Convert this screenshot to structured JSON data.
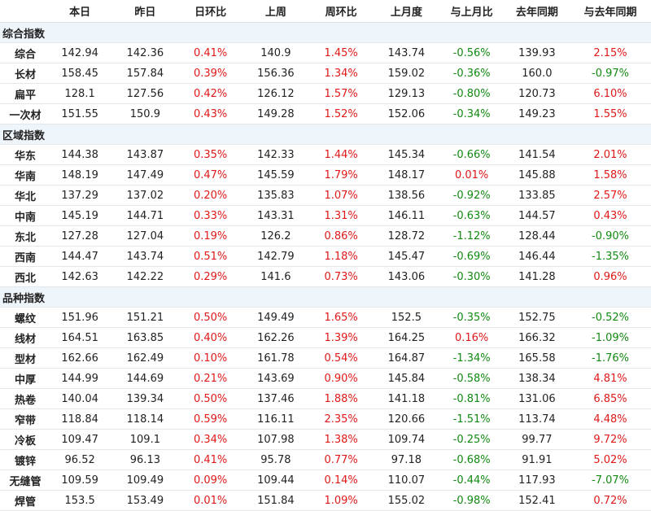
{
  "colors": {
    "positive": "#e01818",
    "negative": "#128a12",
    "section_bg": "#eef5fb"
  },
  "headers": [
    "",
    "本日",
    "昨日",
    "日环比",
    "上周",
    "周环比",
    "上月度",
    "与上月比",
    "去年同期",
    "与去年同期"
  ],
  "sections": [
    {
      "title": "综合指数",
      "rows": [
        {
          "name": "综合",
          "values": [
            "142.94",
            "142.36",
            "0.41%",
            "140.9",
            "1.45%",
            "143.74",
            "-0.56%",
            "139.93",
            "2.15%"
          ]
        },
        {
          "name": "长材",
          "values": [
            "158.45",
            "157.84",
            "0.39%",
            "156.36",
            "1.34%",
            "159.02",
            "-0.36%",
            "160.0",
            "-0.97%"
          ]
        },
        {
          "name": "扁平",
          "values": [
            "128.1",
            "127.56",
            "0.42%",
            "126.12",
            "1.57%",
            "129.13",
            "-0.80%",
            "120.73",
            "6.10%"
          ]
        },
        {
          "name": "一次材",
          "values": [
            "151.55",
            "150.9",
            "0.43%",
            "149.28",
            "1.52%",
            "152.06",
            "-0.34%",
            "149.23",
            "1.55%"
          ]
        }
      ]
    },
    {
      "title": "区域指数",
      "rows": [
        {
          "name": "华东",
          "values": [
            "144.38",
            "143.87",
            "0.35%",
            "142.33",
            "1.44%",
            "145.34",
            "-0.66%",
            "141.54",
            "2.01%"
          ]
        },
        {
          "name": "华南",
          "values": [
            "148.19",
            "147.49",
            "0.47%",
            "145.59",
            "1.79%",
            "148.17",
            "0.01%",
            "145.88",
            "1.58%"
          ]
        },
        {
          "name": "华北",
          "values": [
            "137.29",
            "137.02",
            "0.20%",
            "135.83",
            "1.07%",
            "138.56",
            "-0.92%",
            "133.85",
            "2.57%"
          ]
        },
        {
          "name": "中南",
          "values": [
            "145.19",
            "144.71",
            "0.33%",
            "143.31",
            "1.31%",
            "146.11",
            "-0.63%",
            "144.57",
            "0.43%"
          ]
        },
        {
          "name": "东北",
          "values": [
            "127.28",
            "127.04",
            "0.19%",
            "126.2",
            "0.86%",
            "128.72",
            "-1.12%",
            "128.44",
            "-0.90%"
          ]
        },
        {
          "name": "西南",
          "values": [
            "144.47",
            "143.74",
            "0.51%",
            "142.79",
            "1.18%",
            "145.47",
            "-0.69%",
            "146.44",
            "-1.35%"
          ]
        },
        {
          "name": "西北",
          "values": [
            "142.63",
            "142.22",
            "0.29%",
            "141.6",
            "0.73%",
            "143.06",
            "-0.30%",
            "141.28",
            "0.96%"
          ]
        }
      ]
    },
    {
      "title": "品种指数",
      "rows": [
        {
          "name": "螺纹",
          "values": [
            "151.96",
            "151.21",
            "0.50%",
            "149.49",
            "1.65%",
            "152.5",
            "-0.35%",
            "152.75",
            "-0.52%"
          ]
        },
        {
          "name": "线材",
          "values": [
            "164.51",
            "163.85",
            "0.40%",
            "162.26",
            "1.39%",
            "164.25",
            "0.16%",
            "166.32",
            "-1.09%"
          ]
        },
        {
          "name": "型材",
          "values": [
            "162.66",
            "162.49",
            "0.10%",
            "161.78",
            "0.54%",
            "164.87",
            "-1.34%",
            "165.58",
            "-1.76%"
          ]
        },
        {
          "name": "中厚",
          "values": [
            "144.99",
            "144.69",
            "0.21%",
            "143.69",
            "0.90%",
            "145.84",
            "-0.58%",
            "138.34",
            "4.81%"
          ]
        },
        {
          "name": "热卷",
          "values": [
            "140.04",
            "139.34",
            "0.50%",
            "137.46",
            "1.88%",
            "141.18",
            "-0.81%",
            "131.06",
            "6.85%"
          ]
        },
        {
          "name": "窄带",
          "values": [
            "118.84",
            "118.14",
            "0.59%",
            "116.11",
            "2.35%",
            "120.66",
            "-1.51%",
            "113.74",
            "4.48%"
          ]
        },
        {
          "name": "冷板",
          "values": [
            "109.47",
            "109.1",
            "0.34%",
            "107.98",
            "1.38%",
            "109.74",
            "-0.25%",
            "99.77",
            "9.72%"
          ]
        },
        {
          "name": "镀锌",
          "values": [
            "96.52",
            "96.13",
            "0.41%",
            "95.78",
            "0.77%",
            "97.18",
            "-0.68%",
            "91.91",
            "5.02%"
          ]
        },
        {
          "name": "无缝管",
          "values": [
            "109.59",
            "109.49",
            "0.09%",
            "109.44",
            "0.14%",
            "110.07",
            "-0.44%",
            "117.93",
            "-7.07%"
          ]
        },
        {
          "name": "焊管",
          "values": [
            "153.5",
            "153.49",
            "0.01%",
            "151.84",
            "1.09%",
            "155.02",
            "-0.98%",
            "152.41",
            "0.72%"
          ]
        }
      ]
    }
  ]
}
